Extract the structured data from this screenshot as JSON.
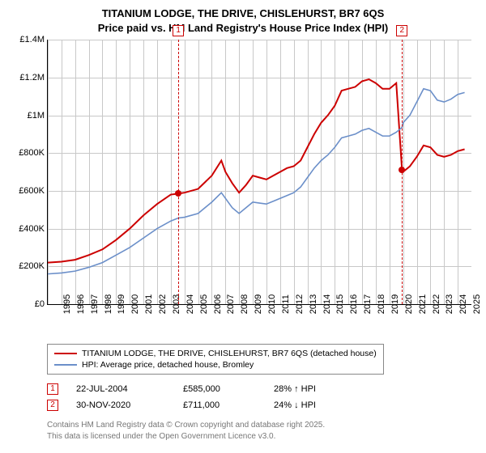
{
  "title_line1": "TITANIUM LODGE, THE DRIVE, CHISLEHURST, BR7 6QS",
  "title_line2": "Price paid vs. HM Land Registry's House Price Index (HPI)",
  "chart": {
    "type": "line",
    "background_color": "#ffffff",
    "grid_color": "#c8c8c8",
    "x_start": 1995,
    "x_end": 2026,
    "y_min": 0,
    "y_max": 1400000,
    "y_tick_step": 200000,
    "y_tick_labels": [
      "£0",
      "£200K",
      "£400K",
      "£600K",
      "£800K",
      "£1M",
      "£1.2M",
      "£1.4M"
    ],
    "x_ticks": [
      1995,
      1996,
      1997,
      1998,
      1999,
      2000,
      2001,
      2002,
      2003,
      2004,
      2005,
      2006,
      2007,
      2008,
      2009,
      2010,
      2011,
      2012,
      2013,
      2014,
      2015,
      2016,
      2017,
      2018,
      2019,
      2020,
      2021,
      2022,
      2023,
      2024,
      2025
    ],
    "series": [
      {
        "name": "property",
        "label": "TITANIUM LODGE, THE DRIVE, CHISLEHURST, BR7 6QS (detached house)",
        "color": "#cc0000",
        "width": 2,
        "data": [
          [
            1995,
            220000
          ],
          [
            1996,
            225000
          ],
          [
            1997,
            235000
          ],
          [
            1998,
            260000
          ],
          [
            1999,
            290000
          ],
          [
            2000,
            340000
          ],
          [
            2001,
            400000
          ],
          [
            2002,
            470000
          ],
          [
            2003,
            530000
          ],
          [
            2004,
            580000
          ],
          [
            2004.55,
            585000
          ],
          [
            2005,
            590000
          ],
          [
            2006,
            610000
          ],
          [
            2007,
            680000
          ],
          [
            2007.7,
            760000
          ],
          [
            2008,
            700000
          ],
          [
            2008.5,
            640000
          ],
          [
            2009,
            590000
          ],
          [
            2009.5,
            630000
          ],
          [
            2010,
            680000
          ],
          [
            2010.5,
            670000
          ],
          [
            2011,
            660000
          ],
          [
            2011.5,
            680000
          ],
          [
            2012,
            700000
          ],
          [
            2012.5,
            720000
          ],
          [
            2013,
            730000
          ],
          [
            2013.5,
            760000
          ],
          [
            2014,
            830000
          ],
          [
            2014.5,
            900000
          ],
          [
            2015,
            960000
          ],
          [
            2015.5,
            1000000
          ],
          [
            2016,
            1050000
          ],
          [
            2016.5,
            1130000
          ],
          [
            2017,
            1140000
          ],
          [
            2017.5,
            1150000
          ],
          [
            2018,
            1180000
          ],
          [
            2018.5,
            1190000
          ],
          [
            2019,
            1170000
          ],
          [
            2019.5,
            1140000
          ],
          [
            2020,
            1140000
          ],
          [
            2020.5,
            1170000
          ],
          [
            2020.92,
            711000
          ],
          [
            2021,
            700000
          ],
          [
            2021.5,
            730000
          ],
          [
            2022,
            780000
          ],
          [
            2022.5,
            840000
          ],
          [
            2023,
            830000
          ],
          [
            2023.5,
            790000
          ],
          [
            2024,
            780000
          ],
          [
            2024.5,
            790000
          ],
          [
            2025,
            810000
          ],
          [
            2025.5,
            820000
          ]
        ]
      },
      {
        "name": "hpi",
        "label": "HPI: Average price, detached house, Bromley",
        "color": "#6b8fc9",
        "width": 1.6,
        "data": [
          [
            1995,
            160000
          ],
          [
            1996,
            165000
          ],
          [
            1997,
            175000
          ],
          [
            1998,
            195000
          ],
          [
            1999,
            220000
          ],
          [
            2000,
            260000
          ],
          [
            2001,
            300000
          ],
          [
            2002,
            350000
          ],
          [
            2003,
            400000
          ],
          [
            2004,
            440000
          ],
          [
            2004.55,
            456000
          ],
          [
            2005,
            460000
          ],
          [
            2006,
            480000
          ],
          [
            2007,
            540000
          ],
          [
            2007.7,
            590000
          ],
          [
            2008,
            560000
          ],
          [
            2008.5,
            510000
          ],
          [
            2009,
            480000
          ],
          [
            2009.5,
            510000
          ],
          [
            2010,
            540000
          ],
          [
            2010.5,
            535000
          ],
          [
            2011,
            530000
          ],
          [
            2011.5,
            545000
          ],
          [
            2012,
            560000
          ],
          [
            2012.5,
            575000
          ],
          [
            2013,
            590000
          ],
          [
            2013.5,
            620000
          ],
          [
            2014,
            670000
          ],
          [
            2014.5,
            720000
          ],
          [
            2015,
            760000
          ],
          [
            2015.5,
            790000
          ],
          [
            2016,
            830000
          ],
          [
            2016.5,
            880000
          ],
          [
            2017,
            890000
          ],
          [
            2017.5,
            900000
          ],
          [
            2018,
            920000
          ],
          [
            2018.5,
            930000
          ],
          [
            2019,
            910000
          ],
          [
            2019.5,
            890000
          ],
          [
            2020,
            890000
          ],
          [
            2020.5,
            910000
          ],
          [
            2020.92,
            935000
          ],
          [
            2021,
            960000
          ],
          [
            2021.5,
            1000000
          ],
          [
            2022,
            1070000
          ],
          [
            2022.5,
            1140000
          ],
          [
            2023,
            1130000
          ],
          [
            2023.5,
            1080000
          ],
          [
            2024,
            1070000
          ],
          [
            2024.5,
            1085000
          ],
          [
            2025,
            1110000
          ],
          [
            2025.5,
            1120000
          ]
        ]
      }
    ],
    "markers": [
      {
        "num": "1",
        "x": 2004.55,
        "y": 585000,
        "color": "#cc0000"
      },
      {
        "num": "2",
        "x": 2020.92,
        "y": 711000,
        "color": "#cc0000"
      }
    ]
  },
  "transactions": [
    {
      "num": "1",
      "date": "22-JUL-2004",
      "price": "£585,000",
      "delta": "28% ↑ HPI",
      "dir": "up"
    },
    {
      "num": "2",
      "date": "30-NOV-2020",
      "price": "£711,000",
      "delta": "24% ↓ HPI",
      "dir": "down"
    }
  ],
  "footer_line1": "Contains HM Land Registry data © Crown copyright and database right 2025.",
  "footer_line2": "This data is licensed under the Open Government Licence v3.0."
}
